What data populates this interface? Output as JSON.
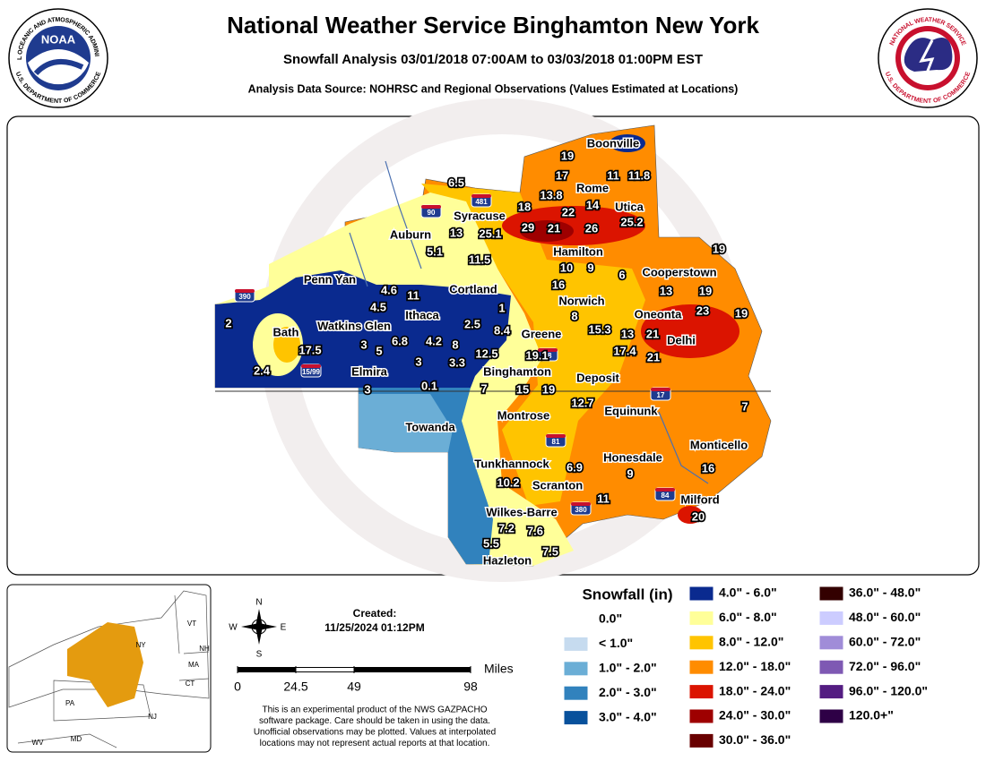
{
  "header": {
    "title": "National Weather Service Binghamton New York",
    "subtitle": "Snowfall Analysis 03/01/2018 07:00AM to 03/03/2018 01:00PM EST",
    "source": "Analysis Data Source: NOHRSC and Regional Observations (Values Estimated at Locations)"
  },
  "logos": {
    "noaa": {
      "center": "NOAA",
      "ring_top": "NATIONAL OCEANIC AND ATMOSPHERIC ADMINISTRATION",
      "ring_bottom": "U.S. DEPARTMENT OF COMMERCE"
    },
    "nws": {
      "ring_top": "NATIONAL WEATHER SERVICE",
      "ring_bottom": "U.S. DEPARTMENT OF COMMERCE"
    }
  },
  "map": {
    "cities": [
      "Boonville",
      "Rome",
      "Utica",
      "Syracuse",
      "Auburn",
      "Hamilton",
      "Cooperstown",
      "Penn Yan",
      "Cortland",
      "Norwich",
      "Oneonta",
      "Ithaca",
      "Watkins Glen",
      "Bath",
      "Greene",
      "Delhi",
      "Elmira",
      "Binghamton",
      "Deposit",
      "Equinunk",
      "Montrose",
      "Towanda",
      "Monticello",
      "Honesdale",
      "Tunkhannock",
      "Scranton",
      "Milford",
      "Wilkes-Barre",
      "Hazleton"
    ],
    "snowfall_values": [
      19,
      17,
      11,
      11.8,
      6.5,
      13.8,
      18,
      22,
      14,
      13,
      25.1,
      29,
      21,
      26,
      25.2,
      19,
      5.1,
      11.5,
      10,
      9,
      6,
      16,
      13,
      19,
      4.6,
      11,
      4.5,
      1,
      8,
      23,
      19,
      2,
      2.5,
      8.4,
      15.3,
      13,
      21,
      17.5,
      3,
      6.8,
      4.2,
      8,
      5,
      12.5,
      19.1,
      17.4,
      21,
      3,
      3.3,
      2.4,
      3,
      0.1,
      7,
      15,
      19,
      12.7,
      7,
      16,
      6.9,
      9,
      10.2,
      11,
      20,
      7.2,
      7.6,
      5.5,
      7.5
    ],
    "interstates": [
      "481",
      "90",
      "390",
      "15/99",
      "88",
      "17",
      "81",
      "84",
      "380"
    ]
  },
  "inset": {
    "states": [
      "NY",
      "VT",
      "NH",
      "MA",
      "CT",
      "PA",
      "NJ",
      "WV",
      "MD"
    ]
  },
  "compass": {
    "n": "N",
    "s": "S",
    "e": "E",
    "w": "W"
  },
  "created": {
    "label": "Created:",
    "timestamp": "11/25/2024 01:12PM"
  },
  "scale": {
    "ticks": [
      0,
      24.5,
      49,
      98
    ],
    "unit": "Miles"
  },
  "disclaimer": [
    "This is an experimental product of the NWS GAZPACHO",
    "software package. Care should be taken in using the data.",
    "Unofficial observations may be plotted. Values at interpolated",
    "locations may not represent actual reports at that location."
  ],
  "legend": {
    "title": "Snowfall (in)",
    "items": [
      {
        "label": "0.0\"",
        "color": "#ffffff"
      },
      {
        "label": "< 1.0\"",
        "color": "#c6dbef"
      },
      {
        "label": "1.0\" - 2.0\"",
        "color": "#6baed6"
      },
      {
        "label": "2.0\" - 3.0\"",
        "color": "#3182bd"
      },
      {
        "label": "3.0\" - 4.0\"",
        "color": "#08519c"
      },
      {
        "label": "4.0\" - 6.0\"",
        "color": "#0a2a8f"
      },
      {
        "label": "6.0\" - 8.0\"",
        "color": "#ffff99"
      },
      {
        "label": "8.0\" - 12.0\"",
        "color": "#ffc400"
      },
      {
        "label": "12.0\" - 18.0\"",
        "color": "#ff8c00"
      },
      {
        "label": "18.0\" - 24.0\"",
        "color": "#db1400"
      },
      {
        "label": "24.0\" - 30.0\"",
        "color": "#9e0000"
      },
      {
        "label": "30.0\" - 36.0\"",
        "color": "#690000"
      },
      {
        "label": "36.0\" - 48.0\"",
        "color": "#330000"
      },
      {
        "label": "48.0\" - 60.0\"",
        "color": "#ccccff"
      },
      {
        "label": "60.0\" - 72.0\"",
        "color": "#a08cd8"
      },
      {
        "label": "72.0\" - 96.0\"",
        "color": "#7e59b3"
      },
      {
        "label": "96.0\" - 120.0\"",
        "color": "#541d82"
      },
      {
        "label": "120.0+\"",
        "color": "#2e0046"
      }
    ]
  }
}
